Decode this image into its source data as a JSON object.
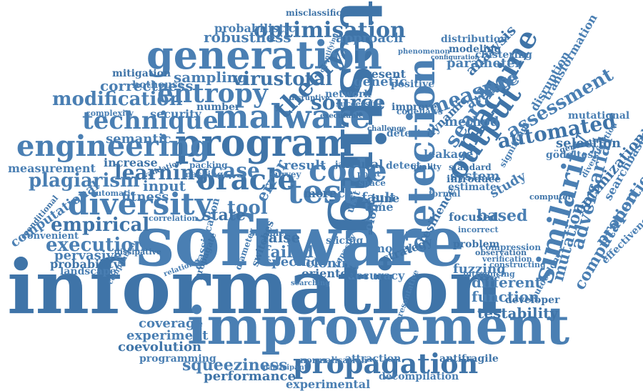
{
  "colors": {
    "ink": "#4a7fb3",
    "ink_dark": "#3f74a8",
    "background": "#ffffff"
  },
  "words": {
    "information": "information",
    "software": "software",
    "testing": "testing",
    "improvement": "improvement",
    "generation": "generation",
    "malware": "malware",
    "program": "program",
    "detection": "detection",
    "test": "test",
    "oracle": "oracle",
    "diversity": "diversity",
    "code": "code",
    "propagation": "propagation",
    "engineering": "engineering",
    "entropy": "entropy",
    "theory": "theory",
    "technique": "technique",
    "modification": "modification",
    "machine": "machine",
    "similarity": "similarity",
    "measure": "measure",
    "output": "output",
    "search": "search",
    "assessment": "assessment",
    "automated": "automated",
    "adversarial": "adversarial",
    "mutation": "mutation",
    "learning": "learning",
    "plagiarism": "plagiarism",
    "measurement": "measurement",
    "empirical": "empirical",
    "execution": "execution",
    "pervasive": "pervasive",
    "probability": "probability",
    "landscape": "landscape",
    "computational": "computational",
    "optimisation": "optimisation",
    "robustness": "robustness",
    "probabilistic": "probabilistic",
    "misclassification": "misclassification",
    "approach": "approach",
    "sampling": "sampling",
    "virustotal": "virustotal",
    "correctness": "correctness",
    "hothouse": "hothouse",
    "mitigation": "mitigation",
    "security": "security",
    "semantic": "semantic",
    "source": "source",
    "case": "case",
    "tool": "tool",
    "state": "state",
    "fitness": "fitness",
    "input": "input",
    "increase": "increase",
    "coverage": "coverage",
    "experiment": "experiment",
    "coevolution": "coevolution",
    "programming": "programming",
    "squeeziness": "squeeziness",
    "performance": "performance",
    "experimental": "experimental",
    "decompilation": "decompilation",
    "antifragile": "antifragile",
    "normalisation": "normalisation",
    "attraction": "attraction",
    "testability": "testability",
    "function": "function",
    "different": "different",
    "developer": "developer",
    "based": "based",
    "study": "study",
    "focused": "focused",
    "computation": "computation",
    "properties": "properties",
    "optimization": "optimization",
    "searchbased": "searchbased",
    "effectiveness": "effectiveness",
    "selection": "selection",
    "mutational": "mutational",
    "gödeltest": "gödeltest",
    "generating": "generating",
    "disruption": "disruption",
    "transformation": "transformation",
    "analysis": "analysis",
    "parameter": "parameter",
    "clustering": "clustering",
    "modeling": "modeling",
    "distribution": "distribution",
    "phenomenon": "phenomenon",
    "configuration": "configuration",
    "method": "method",
    "average": "average",
    "dynamic": "dynamic",
    "leakage": "leakage",
    "system": "system",
    "standard": "standard",
    "significant": "significant",
    "estimate": "estimate",
    "introduce": "introduce",
    "formal": "formal",
    "fuzzing": "fuzzing",
    "problem": "problem",
    "compression": "compression",
    "verification": "verification",
    "observation": "observation",
    "constructing": "constructing",
    "introducing": "introducing",
    "resilience": "resilience",
    "accuracy": "accuracy",
    "model": "model",
    "strategy": "strategy",
    "colony": "colony",
    "failed": "failed",
    "false": "false",
    "specific": "specific",
    "cloning": "cloning",
    "oriented": "oriented",
    "fault": "fault",
    "time": "time",
    "june": "june",
    "unit": "unit",
    "race": "race",
    "more": "more",
    "error": "error",
    "result": "result",
    "neural": "neural",
    "detect": "detect",
    "genetic": "genetic",
    "improve": "improve",
    "positive": "positive",
    "detector": "detector",
    "present": "present",
    "network": "network",
    "codeflaws": "codeflaws",
    "java": "java",
    "slicing": "slicing",
    "sample": "sample",
    "switches": "switches",
    "diameter": "diameter",
    "classification": "classification",
    "dissipative": "dissipative",
    "correlation": "correlation",
    "automatic": "automatic",
    "conditional": "conditional",
    "convenient": "convenient",
    "complexity": "complexity",
    "number": "number",
    "masking": "masking",
    "packing": "packing",
    "validation": "validation",
    "capacity": "capacity",
    "survey": "survey",
    "quality": "quality",
    "space": "space",
    "point": "point",
    "challenge": "challenge",
    "participant": "participant",
    "relationship": "relationship",
    "propagate": "propagate",
    "searching": "searching",
    "compilation": "compilation",
    "disruptive": "disruptive",
    "successful": "successful",
    "quantifying": "quantifying",
    "executable": "executable",
    "autocolony": "autocolony",
    "incorrect": "incorrect",
    "computer": "computer",
    "diversification": "diversification",
    "representative": "representative"
  }
}
